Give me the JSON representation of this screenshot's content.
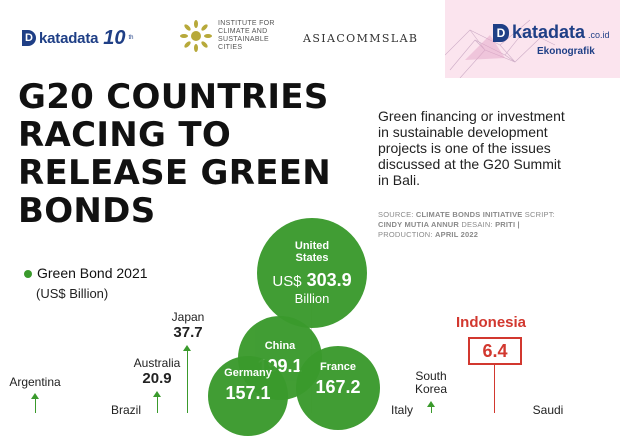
{
  "header": {
    "katadata_word": "katadata",
    "katadata_anniv": "10",
    "katadata_anniv_suffix": "th",
    "institute_lines": [
      "INSTITUTE FOR",
      "CLIMATE AND",
      "SUSTAINABLE",
      "CITIES"
    ],
    "asiacommslab": "ASIACOMMSLAB",
    "corner_brand": "katadata",
    "corner_brand_suffix": ".co.id",
    "corner_section": "Ekonografik"
  },
  "title_lines": [
    "G20 COUNTRIES",
    "RACING TO",
    "RELEASE GREEN",
    "BONDS"
  ],
  "description_lines": [
    "Green financing or investment",
    "in sustainable development",
    "projects is one of the issues",
    "discussed at the G20 Summit",
    "in Bali."
  ],
  "credit": {
    "line1_label": "SOURCE:",
    "line1_value": "CLIMATE BONDS INITIATIVE",
    "line1_label2": "SCRIPT:",
    "line2_value": "CINDY MUTIA ANNUR",
    "line2_label": "DESAIN:",
    "line2_value2": "PRITI |",
    "line3_label": "PRODUCTION:",
    "line3_value": "APRIL 2022"
  },
  "legend": {
    "label": "Green Bond 2021",
    "unit": "(US$ Billion)",
    "color": "#3a9a2c"
  },
  "bubbles": [
    {
      "country": "United States",
      "country_l1": "United",
      "country_l2": "States",
      "value_prefix": "US$",
      "value": "303.9",
      "unit": "Billion"
    },
    {
      "country": "China",
      "value": "199.1"
    },
    {
      "country": "France",
      "value": "167.2"
    },
    {
      "country": "Germany",
      "value": "157.1"
    }
  ],
  "labels": [
    {
      "country": "Japan",
      "value": "37.7"
    },
    {
      "country": "Australia",
      "value": "20.9"
    },
    {
      "country": "Argentina"
    },
    {
      "country": "Brazil"
    },
    {
      "country": "Italy"
    },
    {
      "country_l1": "South",
      "country_l2": "Korea"
    },
    {
      "country": "Saudi"
    }
  ],
  "indonesia": {
    "country": "Indonesia",
    "value": "6.4",
    "color": "#d2382f"
  },
  "colors": {
    "brand": "#1f3f86",
    "green": "#3a9a2c",
    "corner_bg": "#fbe4ee"
  }
}
